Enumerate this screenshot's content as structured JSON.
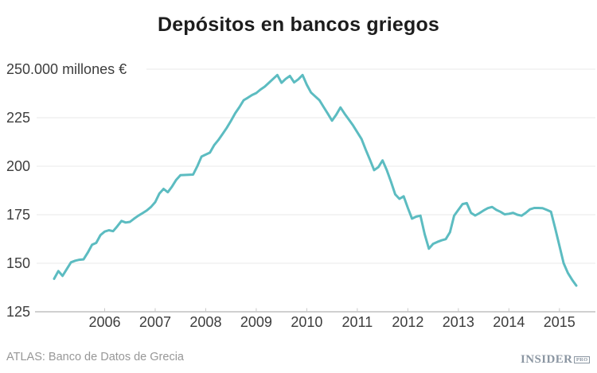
{
  "header": {
    "title": "Depósitos en bancos griegos"
  },
  "footer": {
    "source": "ATLAS: Banco de Datos de Grecia",
    "logo_text": "INSIDER",
    "logo_badge": "PRO"
  },
  "colors": {
    "line": "#5cbcc1",
    "title": "#1d1d1d",
    "axis_labels": "#3d3d3d",
    "gridline": "#e9e9e9",
    "axis_line": "#c9c9c9",
    "tick_mark": "#c9c9c9",
    "source_text": "#979797",
    "logo": "#8b96a2",
    "background": "#ffffff"
  },
  "chart_data": {
    "type": "line",
    "title": "Depósitos en bancos griegos",
    "source": "ATLAS: Banco de Datos de Grecia",
    "legend": "none",
    "grid": "horizontal gridlines on, vertical off",
    "y_axis": {
      "tick_values": [
        250,
        225,
        200,
        175,
        150,
        125
      ],
      "tick_labels": [
        "250.000 millones €",
        "225",
        "200",
        "175",
        "150",
        "125"
      ],
      "range": [
        125,
        250
      ],
      "unit": "miles de millones de euros"
    },
    "x_axis": {
      "tick_labels": [
        "2006",
        "2007",
        "2008",
        "2009",
        "2010",
        "2011",
        "2012",
        "2013",
        "2014",
        "2015"
      ],
      "coverage": "datos mensuales, enero 2005 - mayo 2015"
    },
    "series": [
      {
        "name": "Depósitos en bancos griegos",
        "color": "#5cbcc1",
        "frequency": "monthly",
        "start": "2005-01",
        "end": "2015-05",
        "values": [
          142,
          146,
          143.5,
          147,
          150.5,
          151.3,
          151.8,
          152,
          155.5,
          159.5,
          160.5,
          164.5,
          166.3,
          167,
          166.5,
          169,
          171.8,
          171,
          171.3,
          173,
          174.5,
          175.8,
          177.2,
          179,
          181.5,
          186,
          188.3,
          186.6,
          189.5,
          193,
          195.4,
          195.5,
          195.6,
          195.7,
          200,
          205,
          206,
          207,
          210.8,
          213.5,
          216.6,
          219.8,
          223.4,
          227.3,
          230.5,
          234,
          235.3,
          236.7,
          237.7,
          239.5,
          241,
          243,
          245,
          247,
          243,
          245,
          246.5,
          243.2,
          244.8,
          247,
          242,
          238,
          236,
          234,
          230.5,
          227,
          223.5,
          226.5,
          230.3,
          227,
          224,
          221,
          217.5,
          214,
          208.5,
          203.3,
          198,
          199.5,
          203,
          198,
          192,
          185.5,
          183.2,
          184.5,
          178.5,
          173,
          174,
          174.5,
          165,
          157.5,
          160,
          161,
          161.8,
          162.4,
          166,
          174.5,
          177.5,
          180.5,
          181,
          176,
          174.6,
          175.8,
          177.2,
          178.4,
          179,
          177.5,
          176.5,
          175.2,
          175.5,
          176,
          175,
          174.5,
          176,
          177.8,
          178.5,
          178.5,
          178.4,
          177.5,
          176.5,
          168,
          159,
          150,
          145,
          141.5,
          138.5
        ]
      }
    ]
  }
}
